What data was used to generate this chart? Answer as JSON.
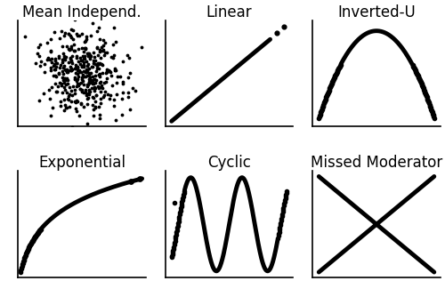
{
  "titles": [
    "Mean Independ.",
    "Linear",
    "Inverted-U",
    "Exponential",
    "Cyclic",
    "Missed Moderator"
  ],
  "title_fontsize": 12,
  "dot_color": "black",
  "dot_size": 3,
  "line_color": "black",
  "line_width": 3.5,
  "bg_color": "white",
  "n_scatter": 400,
  "figsize": [
    5.0,
    3.25
  ],
  "dpi": 100
}
